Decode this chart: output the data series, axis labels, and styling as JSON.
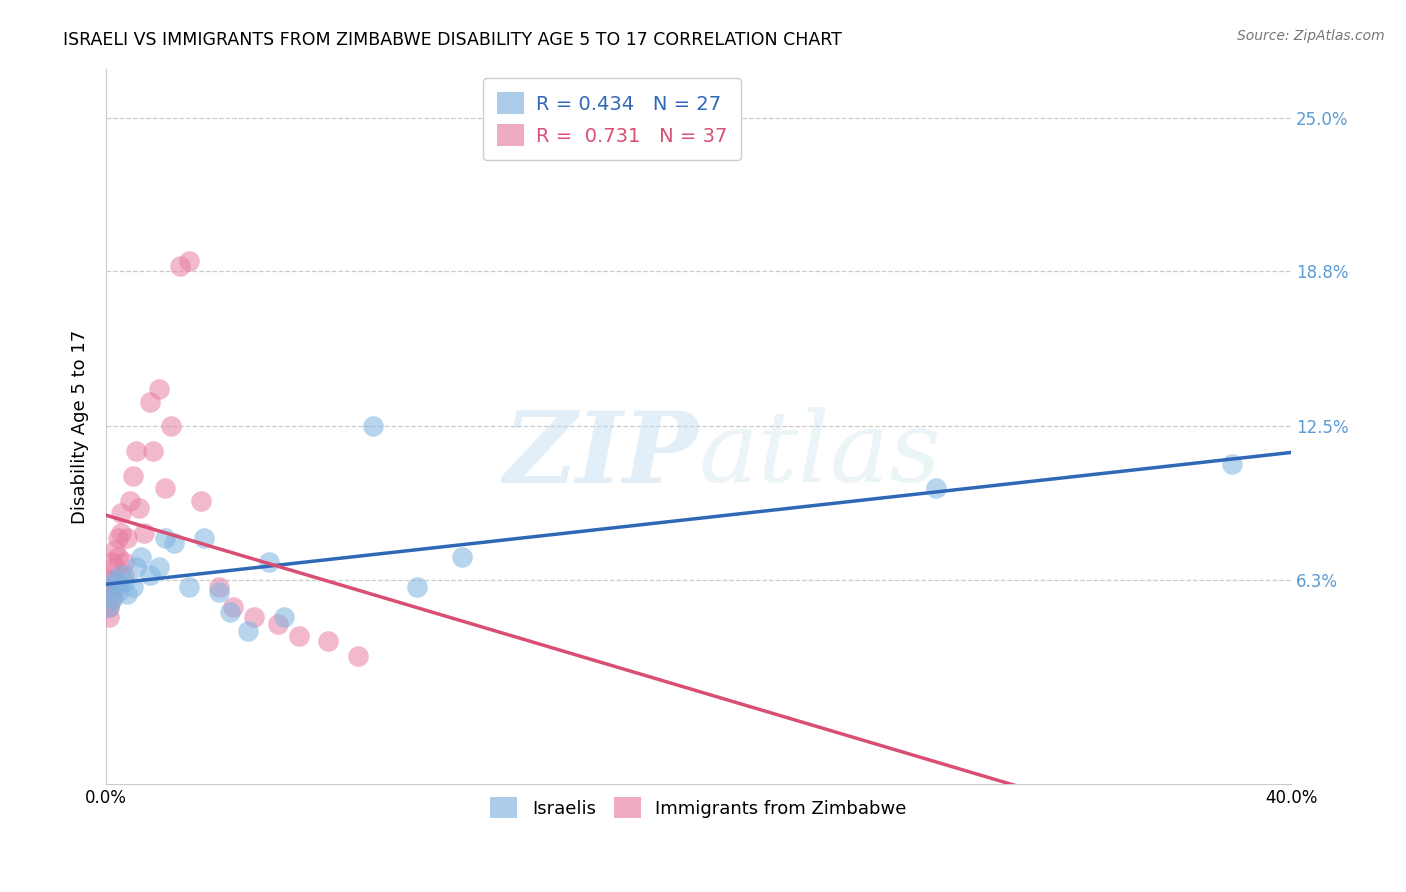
{
  "title": "ISRAELI VS IMMIGRANTS FROM ZIMBABWE DISABILITY AGE 5 TO 17 CORRELATION CHART",
  "source": "Source: ZipAtlas.com",
  "ylabel": "Disability Age 5 to 17",
  "ytick_values": [
    0.063,
    0.125,
    0.188,
    0.25
  ],
  "ytick_labels": [
    "6.3%",
    "12.5%",
    "18.8%",
    "25.0%"
  ],
  "xlim": [
    0.0,
    0.4
  ],
  "ylim": [
    -0.02,
    0.27
  ],
  "watermark_zip": "ZIP",
  "watermark_atlas": "atlas",
  "israeli_color": "#7eb3e0",
  "zimbabwe_color": "#e87fa5",
  "israeli_line_color": "#3068b8",
  "zimbabwe_line_color": "#d94f74",
  "israeli_R": 0.434,
  "israeli_N": 27,
  "zimbabwe_R": 0.731,
  "zimbabwe_N": 37,
  "israeli_x": [
    0.001,
    0.001,
    0.002,
    0.003,
    0.004,
    0.005,
    0.006,
    0.007,
    0.009,
    0.01,
    0.012,
    0.015,
    0.018,
    0.02,
    0.023,
    0.028,
    0.033,
    0.038,
    0.042,
    0.048,
    0.055,
    0.06,
    0.09,
    0.105,
    0.12,
    0.28,
    0.38
  ],
  "israeli_y": [
    0.06,
    0.052,
    0.055,
    0.063,
    0.058,
    0.065,
    0.062,
    0.057,
    0.06,
    0.068,
    0.072,
    0.065,
    0.068,
    0.08,
    0.078,
    0.06,
    0.08,
    0.058,
    0.05,
    0.042,
    0.07,
    0.048,
    0.125,
    0.06,
    0.072,
    0.1,
    0.11
  ],
  "zimbabwe_x": [
    0.001,
    0.001,
    0.001,
    0.001,
    0.002,
    0.002,
    0.002,
    0.003,
    0.003,
    0.003,
    0.004,
    0.004,
    0.005,
    0.005,
    0.006,
    0.006,
    0.007,
    0.008,
    0.009,
    0.01,
    0.011,
    0.013,
    0.015,
    0.016,
    0.018,
    0.02,
    0.022,
    0.025,
    0.028,
    0.032,
    0.038,
    0.043,
    0.05,
    0.058,
    0.065,
    0.075,
    0.085
  ],
  "zimbabwe_y": [
    0.063,
    0.058,
    0.052,
    0.048,
    0.07,
    0.063,
    0.055,
    0.075,
    0.068,
    0.06,
    0.08,
    0.072,
    0.09,
    0.082,
    0.07,
    0.065,
    0.08,
    0.095,
    0.105,
    0.115,
    0.092,
    0.082,
    0.135,
    0.115,
    0.14,
    0.1,
    0.125,
    0.19,
    0.192,
    0.095,
    0.06,
    0.052,
    0.048,
    0.045,
    0.04,
    0.038,
    0.032
  ]
}
